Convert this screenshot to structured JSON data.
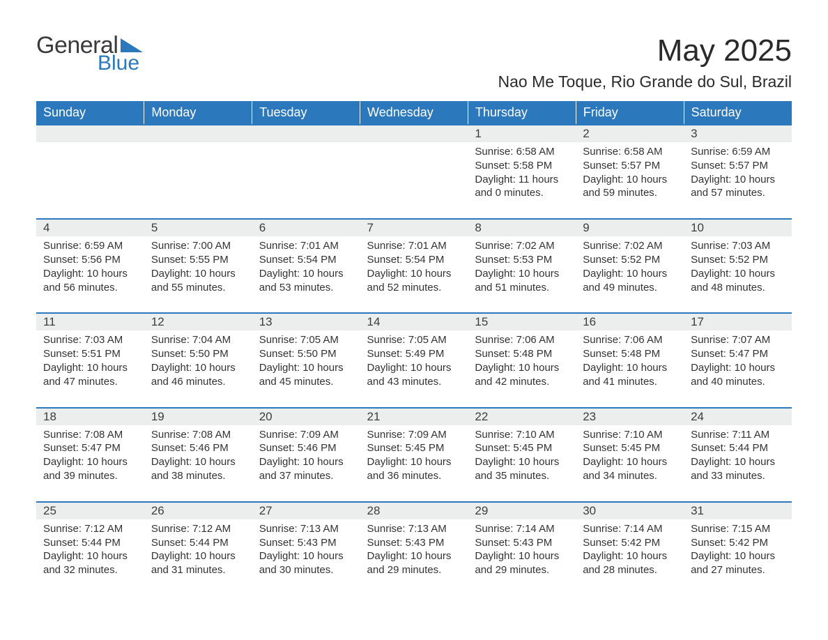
{
  "brand": {
    "name1": "General",
    "name2": "Blue"
  },
  "title": "May 2025",
  "location": "Nao Me Toque, Rio Grande do Sul, Brazil",
  "colors": {
    "accent": "#2c78bd",
    "num_bg": "#eceded",
    "text": "#333333",
    "white": "#ffffff"
  },
  "daynames": [
    "Sunday",
    "Monday",
    "Tuesday",
    "Wednesday",
    "Thursday",
    "Friday",
    "Saturday"
  ],
  "weeks": [
    {
      "nums": [
        "",
        "",
        "",
        "",
        "1",
        "2",
        "3"
      ],
      "cells": [
        null,
        null,
        null,
        null,
        {
          "l1": "Sunrise: 6:58 AM",
          "l2": "Sunset: 5:58 PM",
          "l3": "Daylight: 11 hours",
          "l4": "and 0 minutes."
        },
        {
          "l1": "Sunrise: 6:58 AM",
          "l2": "Sunset: 5:57 PM",
          "l3": "Daylight: 10 hours",
          "l4": "and 59 minutes."
        },
        {
          "l1": "Sunrise: 6:59 AM",
          "l2": "Sunset: 5:57 PM",
          "l3": "Daylight: 10 hours",
          "l4": "and 57 minutes."
        }
      ]
    },
    {
      "nums": [
        "4",
        "5",
        "6",
        "7",
        "8",
        "9",
        "10"
      ],
      "cells": [
        {
          "l1": "Sunrise: 6:59 AM",
          "l2": "Sunset: 5:56 PM",
          "l3": "Daylight: 10 hours",
          "l4": "and 56 minutes."
        },
        {
          "l1": "Sunrise: 7:00 AM",
          "l2": "Sunset: 5:55 PM",
          "l3": "Daylight: 10 hours",
          "l4": "and 55 minutes."
        },
        {
          "l1": "Sunrise: 7:01 AM",
          "l2": "Sunset: 5:54 PM",
          "l3": "Daylight: 10 hours",
          "l4": "and 53 minutes."
        },
        {
          "l1": "Sunrise: 7:01 AM",
          "l2": "Sunset: 5:54 PM",
          "l3": "Daylight: 10 hours",
          "l4": "and 52 minutes."
        },
        {
          "l1": "Sunrise: 7:02 AM",
          "l2": "Sunset: 5:53 PM",
          "l3": "Daylight: 10 hours",
          "l4": "and 51 minutes."
        },
        {
          "l1": "Sunrise: 7:02 AM",
          "l2": "Sunset: 5:52 PM",
          "l3": "Daylight: 10 hours",
          "l4": "and 49 minutes."
        },
        {
          "l1": "Sunrise: 7:03 AM",
          "l2": "Sunset: 5:52 PM",
          "l3": "Daylight: 10 hours",
          "l4": "and 48 minutes."
        }
      ]
    },
    {
      "nums": [
        "11",
        "12",
        "13",
        "14",
        "15",
        "16",
        "17"
      ],
      "cells": [
        {
          "l1": "Sunrise: 7:03 AM",
          "l2": "Sunset: 5:51 PM",
          "l3": "Daylight: 10 hours",
          "l4": "and 47 minutes."
        },
        {
          "l1": "Sunrise: 7:04 AM",
          "l2": "Sunset: 5:50 PM",
          "l3": "Daylight: 10 hours",
          "l4": "and 46 minutes."
        },
        {
          "l1": "Sunrise: 7:05 AM",
          "l2": "Sunset: 5:50 PM",
          "l3": "Daylight: 10 hours",
          "l4": "and 45 minutes."
        },
        {
          "l1": "Sunrise: 7:05 AM",
          "l2": "Sunset: 5:49 PM",
          "l3": "Daylight: 10 hours",
          "l4": "and 43 minutes."
        },
        {
          "l1": "Sunrise: 7:06 AM",
          "l2": "Sunset: 5:48 PM",
          "l3": "Daylight: 10 hours",
          "l4": "and 42 minutes."
        },
        {
          "l1": "Sunrise: 7:06 AM",
          "l2": "Sunset: 5:48 PM",
          "l3": "Daylight: 10 hours",
          "l4": "and 41 minutes."
        },
        {
          "l1": "Sunrise: 7:07 AM",
          "l2": "Sunset: 5:47 PM",
          "l3": "Daylight: 10 hours",
          "l4": "and 40 minutes."
        }
      ]
    },
    {
      "nums": [
        "18",
        "19",
        "20",
        "21",
        "22",
        "23",
        "24"
      ],
      "cells": [
        {
          "l1": "Sunrise: 7:08 AM",
          "l2": "Sunset: 5:47 PM",
          "l3": "Daylight: 10 hours",
          "l4": "and 39 minutes."
        },
        {
          "l1": "Sunrise: 7:08 AM",
          "l2": "Sunset: 5:46 PM",
          "l3": "Daylight: 10 hours",
          "l4": "and 38 minutes."
        },
        {
          "l1": "Sunrise: 7:09 AM",
          "l2": "Sunset: 5:46 PM",
          "l3": "Daylight: 10 hours",
          "l4": "and 37 minutes."
        },
        {
          "l1": "Sunrise: 7:09 AM",
          "l2": "Sunset: 5:45 PM",
          "l3": "Daylight: 10 hours",
          "l4": "and 36 minutes."
        },
        {
          "l1": "Sunrise: 7:10 AM",
          "l2": "Sunset: 5:45 PM",
          "l3": "Daylight: 10 hours",
          "l4": "and 35 minutes."
        },
        {
          "l1": "Sunrise: 7:10 AM",
          "l2": "Sunset: 5:45 PM",
          "l3": "Daylight: 10 hours",
          "l4": "and 34 minutes."
        },
        {
          "l1": "Sunrise: 7:11 AM",
          "l2": "Sunset: 5:44 PM",
          "l3": "Daylight: 10 hours",
          "l4": "and 33 minutes."
        }
      ]
    },
    {
      "nums": [
        "25",
        "26",
        "27",
        "28",
        "29",
        "30",
        "31"
      ],
      "cells": [
        {
          "l1": "Sunrise: 7:12 AM",
          "l2": "Sunset: 5:44 PM",
          "l3": "Daylight: 10 hours",
          "l4": "and 32 minutes."
        },
        {
          "l1": "Sunrise: 7:12 AM",
          "l2": "Sunset: 5:44 PM",
          "l3": "Daylight: 10 hours",
          "l4": "and 31 minutes."
        },
        {
          "l1": "Sunrise: 7:13 AM",
          "l2": "Sunset: 5:43 PM",
          "l3": "Daylight: 10 hours",
          "l4": "and 30 minutes."
        },
        {
          "l1": "Sunrise: 7:13 AM",
          "l2": "Sunset: 5:43 PM",
          "l3": "Daylight: 10 hours",
          "l4": "and 29 minutes."
        },
        {
          "l1": "Sunrise: 7:14 AM",
          "l2": "Sunset: 5:43 PM",
          "l3": "Daylight: 10 hours",
          "l4": "and 29 minutes."
        },
        {
          "l1": "Sunrise: 7:14 AM",
          "l2": "Sunset: 5:42 PM",
          "l3": "Daylight: 10 hours",
          "l4": "and 28 minutes."
        },
        {
          "l1": "Sunrise: 7:15 AM",
          "l2": "Sunset: 5:42 PM",
          "l3": "Daylight: 10 hours",
          "l4": "and 27 minutes."
        }
      ]
    }
  ]
}
